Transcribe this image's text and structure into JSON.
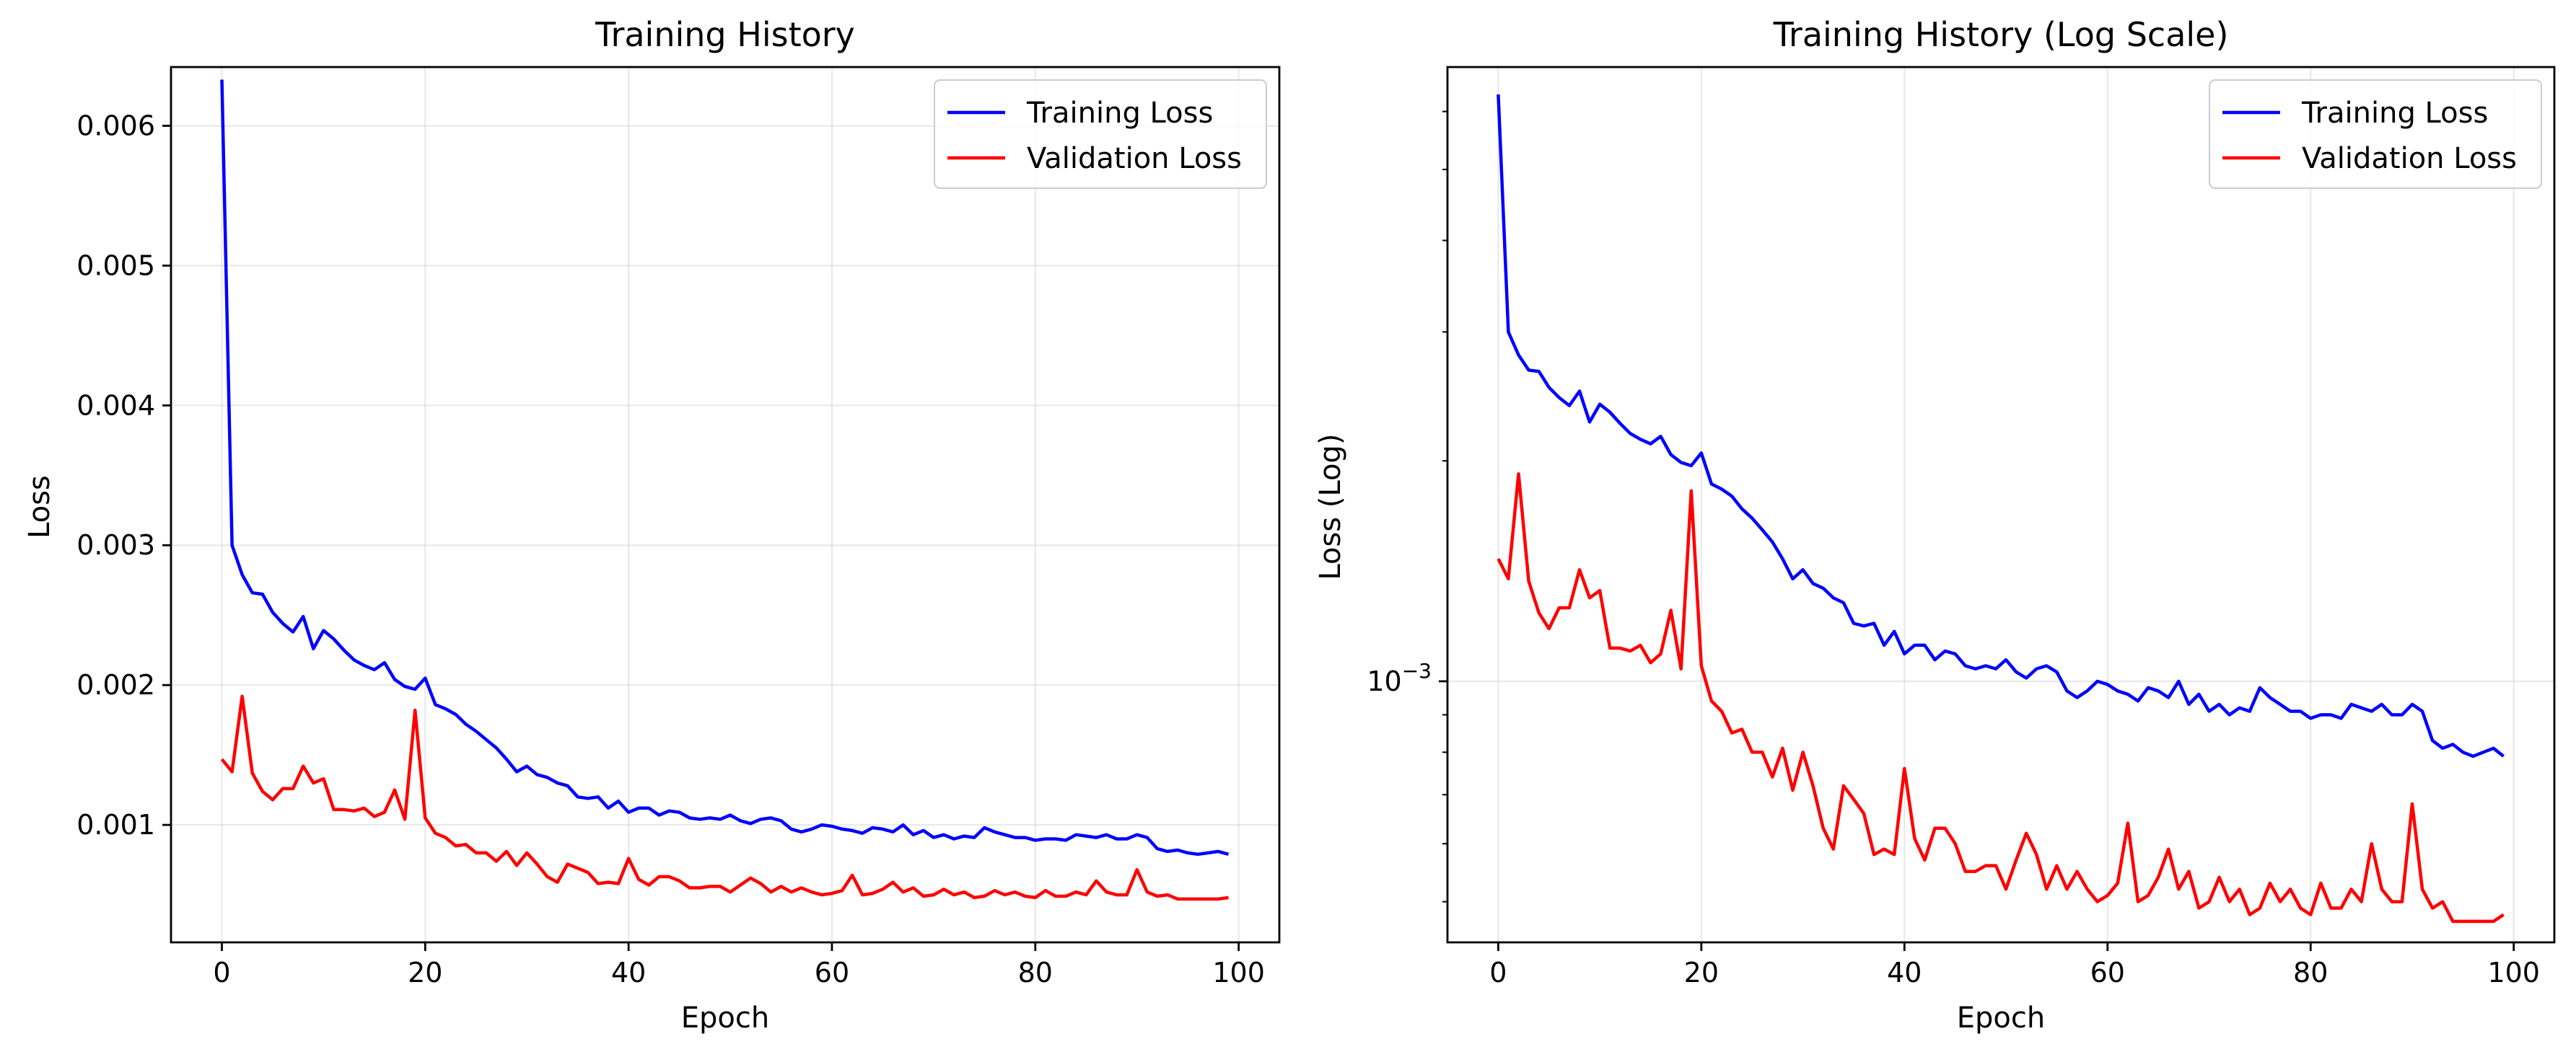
{
  "colors": {
    "training": "#0000ff",
    "validation": "#ff0000"
  },
  "chart_data": [
    {
      "type": "line",
      "title": "Training History",
      "xlabel": "Epoch",
      "ylabel": "Loss",
      "yscale": "linear",
      "xlim": [
        -5,
        104
      ],
      "ylim": [
        0.00016,
        0.00642
      ],
      "xticks": [
        0,
        20,
        40,
        60,
        80,
        100
      ],
      "xtick_labels": [
        "0",
        "20",
        "40",
        "60",
        "80",
        "100"
      ],
      "yticks": [
        0.001,
        0.002,
        0.003,
        0.004,
        0.005,
        0.006
      ],
      "ytick_labels": [
        "0.001",
        "0.002",
        "0.003",
        "0.004",
        "0.005",
        "0.006"
      ],
      "grid": true,
      "legend": "top-right",
      "series": [
        {
          "name": "Training Loss",
          "color": "#0000ff",
          "values": [
            0.00633,
            0.003,
            0.00279,
            0.00266,
            0.00265,
            0.00252,
            0.00244,
            0.00238,
            0.00249,
            0.00226,
            0.00239,
            0.00233,
            0.00225,
            0.00218,
            0.00214,
            0.00211,
            0.00216,
            0.00204,
            0.00199,
            0.00197,
            0.00205,
            0.00186,
            0.00183,
            0.00179,
            0.00172,
            0.00167,
            0.00161,
            0.00155,
            0.00147,
            0.00138,
            0.00142,
            0.00136,
            0.00134,
            0.0013,
            0.00128,
            0.0012,
            0.00119,
            0.0012,
            0.00112,
            0.00117,
            0.00109,
            0.00112,
            0.00112,
            0.00107,
            0.0011,
            0.00109,
            0.00105,
            0.00104,
            0.00105,
            0.00104,
            0.00107,
            0.00103,
            0.00101,
            0.00104,
            0.00105,
            0.00103,
            0.00097,
            0.00095,
            0.00097,
            0.001,
            0.00099,
            0.00097,
            0.00096,
            0.00094,
            0.00098,
            0.00097,
            0.00095,
            0.001,
            0.00093,
            0.00096,
            0.00091,
            0.00093,
            0.0009,
            0.00092,
            0.00091,
            0.00098,
            0.00095,
            0.00093,
            0.00091,
            0.00091,
            0.00089,
            0.0009,
            0.0009,
            0.00089,
            0.00093,
            0.00092,
            0.00091,
            0.00093,
            0.0009,
            0.0009,
            0.00093,
            0.00091,
            0.00083,
            0.00081,
            0.00082,
            0.0008,
            0.00079,
            0.0008,
            0.00081,
            0.00079
          ]
        },
        {
          "name": "Validation Loss",
          "color": "#ff0000",
          "values": [
            0.00147,
            0.00138,
            0.00192,
            0.00137,
            0.00124,
            0.00118,
            0.00126,
            0.00126,
            0.00142,
            0.0013,
            0.00133,
            0.00111,
            0.00111,
            0.0011,
            0.00112,
            0.00106,
            0.00109,
            0.00125,
            0.00104,
            0.00182,
            0.00105,
            0.00094,
            0.00091,
            0.00085,
            0.00086,
            0.0008,
            0.0008,
            0.00074,
            0.00081,
            0.00071,
            0.0008,
            0.00072,
            0.00063,
            0.00059,
            0.00072,
            0.00069,
            0.00066,
            0.00058,
            0.00059,
            0.00058,
            0.00076,
            0.00061,
            0.00057,
            0.00063,
            0.00063,
            0.0006,
            0.00055,
            0.00055,
            0.00056,
            0.00056,
            0.00052,
            0.00057,
            0.00062,
            0.00058,
            0.00052,
            0.00056,
            0.00052,
            0.00055,
            0.00052,
            0.0005,
            0.00051,
            0.00053,
            0.00064,
            0.0005,
            0.00051,
            0.00054,
            0.00059,
            0.00052,
            0.00055,
            0.00049,
            0.0005,
            0.00054,
            0.0005,
            0.00052,
            0.00048,
            0.00049,
            0.00053,
            0.0005,
            0.00052,
            0.00049,
            0.00048,
            0.00053,
            0.00049,
            0.00049,
            0.00052,
            0.0005,
            0.0006,
            0.00052,
            0.0005,
            0.0005,
            0.00068,
            0.00052,
            0.00049,
            0.0005,
            0.00047,
            0.00047,
            0.00047,
            0.00047,
            0.00047,
            0.00048
          ]
        }
      ]
    },
    {
      "type": "line",
      "title": "Training History (Log Scale)",
      "xlabel": "Epoch",
      "ylabel": "Loss (Log)",
      "yscale": "log",
      "xlim": [
        -5,
        104
      ],
      "ylim": [
        0.00044,
        0.0069
      ],
      "xticks": [
        0,
        20,
        40,
        60,
        80,
        100
      ],
      "xtick_labels": [
        "0",
        "20",
        "40",
        "60",
        "80",
        "100"
      ],
      "yticks": [
        0.001
      ],
      "ytick_labels": [
        "10",
        "−3"
      ],
      "minor_yticks": [
        0.0005,
        0.0006,
        0.0007,
        0.0008,
        0.0009,
        0.002,
        0.003,
        0.004,
        0.005,
        0.006
      ],
      "grid": true,
      "legend": "top-right",
      "series": [
        {
          "name": "Training Loss",
          "color": "#0000ff",
          "values": [
            0.00633,
            0.003,
            0.00279,
            0.00266,
            0.00265,
            0.00252,
            0.00244,
            0.00238,
            0.00249,
            0.00226,
            0.00239,
            0.00233,
            0.00225,
            0.00218,
            0.00214,
            0.00211,
            0.00216,
            0.00204,
            0.00199,
            0.00197,
            0.00205,
            0.00186,
            0.00183,
            0.00179,
            0.00172,
            0.00167,
            0.00161,
            0.00155,
            0.00147,
            0.00138,
            0.00142,
            0.00136,
            0.00134,
            0.0013,
            0.00128,
            0.0012,
            0.00119,
            0.0012,
            0.00112,
            0.00117,
            0.00109,
            0.00112,
            0.00112,
            0.00107,
            0.0011,
            0.00109,
            0.00105,
            0.00104,
            0.00105,
            0.00104,
            0.00107,
            0.00103,
            0.00101,
            0.00104,
            0.00105,
            0.00103,
            0.00097,
            0.00095,
            0.00097,
            0.001,
            0.00099,
            0.00097,
            0.00096,
            0.00094,
            0.00098,
            0.00097,
            0.00095,
            0.001,
            0.00093,
            0.00096,
            0.00091,
            0.00093,
            0.0009,
            0.00092,
            0.00091,
            0.00098,
            0.00095,
            0.00093,
            0.00091,
            0.00091,
            0.00089,
            0.0009,
            0.0009,
            0.00089,
            0.00093,
            0.00092,
            0.00091,
            0.00093,
            0.0009,
            0.0009,
            0.00093,
            0.00091,
            0.00083,
            0.00081,
            0.00082,
            0.0008,
            0.00079,
            0.0008,
            0.00081,
            0.00079
          ]
        },
        {
          "name": "Validation Loss",
          "color": "#ff0000",
          "values": [
            0.00147,
            0.00138,
            0.00192,
            0.00137,
            0.00124,
            0.00118,
            0.00126,
            0.00126,
            0.00142,
            0.0013,
            0.00133,
            0.00111,
            0.00111,
            0.0011,
            0.00112,
            0.00106,
            0.00109,
            0.00125,
            0.00104,
            0.00182,
            0.00105,
            0.00094,
            0.00091,
            0.00085,
            0.00086,
            0.0008,
            0.0008,
            0.00074,
            0.00081,
            0.00071,
            0.0008,
            0.00072,
            0.00063,
            0.00059,
            0.00072,
            0.00069,
            0.00066,
            0.00058,
            0.00059,
            0.00058,
            0.00076,
            0.00061,
            0.00057,
            0.00063,
            0.00063,
            0.0006,
            0.00055,
            0.00055,
            0.00056,
            0.00056,
            0.00052,
            0.00057,
            0.00062,
            0.00058,
            0.00052,
            0.00056,
            0.00052,
            0.00055,
            0.00052,
            0.0005,
            0.00051,
            0.00053,
            0.00064,
            0.0005,
            0.00051,
            0.00054,
            0.00059,
            0.00052,
            0.00055,
            0.00049,
            0.0005,
            0.00054,
            0.0005,
            0.00052,
            0.00048,
            0.00049,
            0.00053,
            0.0005,
            0.00052,
            0.00049,
            0.00048,
            0.00053,
            0.00049,
            0.00049,
            0.00052,
            0.0005,
            0.0006,
            0.00052,
            0.0005,
            0.0005,
            0.00068,
            0.00052,
            0.00049,
            0.0005,
            0.00047,
            0.00047,
            0.00047,
            0.00047,
            0.00047,
            0.00048
          ]
        }
      ]
    }
  ]
}
